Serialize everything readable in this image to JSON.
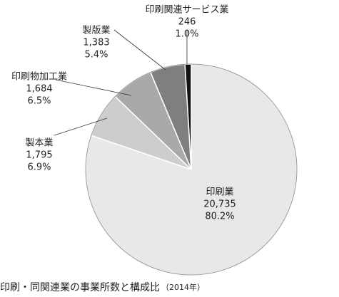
{
  "chart_data": {
    "type": "pie",
    "title": "印刷・同関連業の事業所数と構成比",
    "subtitle": "（2014年）",
    "categories": [
      "印刷業",
      "製本業",
      "印刷物加工業",
      "製版業",
      "印刷関連サービス業"
    ],
    "values": [
      20735,
      1795,
      1684,
      1383,
      246
    ],
    "value_labels": [
      "20,735",
      "1,795",
      "1,684",
      "1,383",
      "246"
    ],
    "percents": [
      80.2,
      6.9,
      6.5,
      5.4,
      1.0
    ],
    "percent_labels": [
      "80.2%",
      "6.9%",
      "6.5%",
      "5.4%",
      "1.0%"
    ],
    "colors": [
      "#e8e8e8",
      "#cdcdcd",
      "#a9a9a9",
      "#7f7f7f",
      "#111111"
    ]
  }
}
